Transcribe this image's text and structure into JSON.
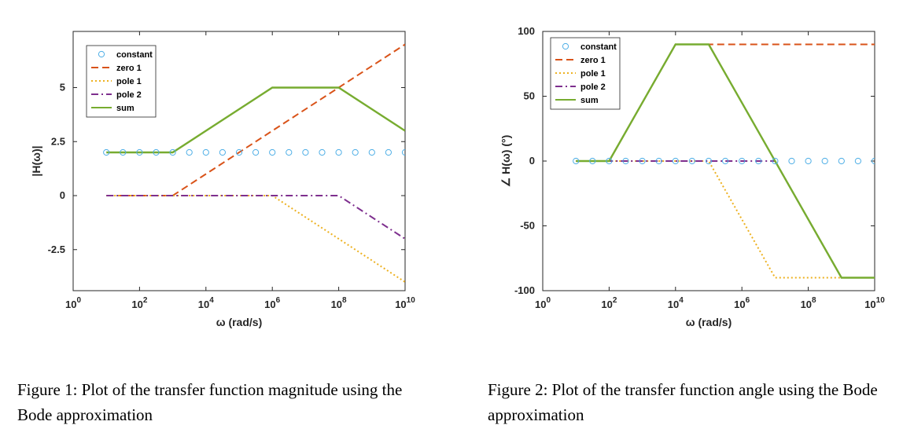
{
  "figures": [
    {
      "caption": "Figure 1: Plot of the transfer function magnitude using the Bode approximation"
    },
    {
      "caption": "Figure 2: Plot of the transfer function angle using the Bode approximation"
    }
  ],
  "chart_data": [
    {
      "type": "line",
      "title": "",
      "xlabel": "ω (rad/s)",
      "ylabel": "|H(ω)|",
      "x_scale": "log",
      "xlim": [
        1,
        10000000000
      ],
      "ylim": [
        -4.4,
        7.6
      ],
      "xticks": [
        1,
        100,
        10000,
        1000000,
        100000000,
        10000000000
      ],
      "xtick_labels": [
        [
          "10",
          "0"
        ],
        [
          "10",
          "2"
        ],
        [
          "10",
          "4"
        ],
        [
          "10",
          "6"
        ],
        [
          "10",
          "8"
        ],
        [
          "10",
          "10"
        ]
      ],
      "yticks": [
        -2.5,
        0,
        2.5,
        5
      ],
      "ytick_labels": [
        "-2.5",
        "0",
        "2.5",
        "5"
      ],
      "grid": false,
      "legend_position": "top-left",
      "series": [
        {
          "name": "constant",
          "style": "circles",
          "color": "#4DAEE6",
          "x": [
            10,
            31.6,
            100,
            316,
            1000,
            3160,
            10000,
            31600,
            100000,
            316000,
            1000000,
            3160000,
            10000000,
            31600000,
            100000000,
            316000000,
            1000000000,
            3160000000,
            10000000000
          ],
          "y": [
            2,
            2,
            2,
            2,
            2,
            2,
            2,
            2,
            2,
            2,
            2,
            2,
            2,
            2,
            2,
            2,
            2,
            2,
            2
          ]
        },
        {
          "name": "zero 1",
          "style": "dash",
          "color": "#D95319",
          "x": [
            10,
            1000,
            10000000000
          ],
          "y": [
            0,
            0,
            7
          ]
        },
        {
          "name": "pole 1",
          "style": "dot",
          "color": "#EDB120",
          "x": [
            10,
            1000000,
            10000000000
          ],
          "y": [
            0,
            0,
            -4
          ]
        },
        {
          "name": "pole 2",
          "style": "dashdot",
          "color": "#7E2F8E",
          "x": [
            10,
            100000000,
            10000000000
          ],
          "y": [
            0,
            0,
            -2
          ]
        },
        {
          "name": "sum",
          "style": "solid",
          "color": "#77AC30",
          "x": [
            10,
            1000,
            1000000,
            100000000,
            10000000000
          ],
          "y": [
            2,
            2,
            5,
            5,
            3
          ]
        }
      ]
    },
    {
      "type": "line",
      "title": "",
      "xlabel": "ω (rad/s)",
      "ylabel": "∠ H(ω) (°)",
      "x_scale": "log",
      "xlim": [
        1,
        10000000000
      ],
      "ylim": [
        -100,
        100
      ],
      "xticks": [
        1,
        100,
        10000,
        1000000,
        100000000,
        10000000000
      ],
      "xtick_labels": [
        [
          "10",
          "0"
        ],
        [
          "10",
          "2"
        ],
        [
          "10",
          "4"
        ],
        [
          "10",
          "6"
        ],
        [
          "10",
          "8"
        ],
        [
          "10",
          "10"
        ]
      ],
      "yticks": [
        -100,
        -50,
        0,
        50,
        100
      ],
      "ytick_labels": [
        "-100",
        "-50",
        "0",
        "50",
        "100"
      ],
      "grid": false,
      "legend_position": "top-left",
      "series": [
        {
          "name": "constant",
          "style": "circles",
          "color": "#4DAEE6",
          "x": [
            10,
            31.6,
            100,
            316,
            1000,
            3160,
            10000,
            31600,
            100000,
            316000,
            1000000,
            3160000,
            10000000,
            31600000,
            100000000,
            316000000,
            1000000000,
            3160000000,
            10000000000
          ],
          "y": [
            0,
            0,
            0,
            0,
            0,
            0,
            0,
            0,
            0,
            0,
            0,
            0,
            0,
            0,
            0,
            0,
            0,
            0,
            0
          ]
        },
        {
          "name": "zero 1",
          "style": "dash",
          "color": "#D95319",
          "x": [
            10,
            100,
            10000,
            10000000000
          ],
          "y": [
            0,
            0,
            90,
            90
          ]
        },
        {
          "name": "pole 1",
          "style": "dot",
          "color": "#EDB120",
          "x": [
            10,
            100000,
            10000000,
            10000000000
          ],
          "y": [
            0,
            0,
            -90,
            -90
          ]
        },
        {
          "name": "pole 2",
          "style": "dashdot",
          "color": "#7E2F8E",
          "x": [
            10,
            10000000,
            1000000000,
            10000000000
          ],
          "y": [
            0,
            0,
            -90,
            -90
          ]
        },
        {
          "name": "sum",
          "style": "solid",
          "color": "#77AC30",
          "x": [
            10,
            100,
            10000,
            100000,
            1000000000,
            10000000000
          ],
          "y": [
            0,
            0,
            90,
            90,
            -90,
            -90
          ]
        }
      ]
    }
  ]
}
